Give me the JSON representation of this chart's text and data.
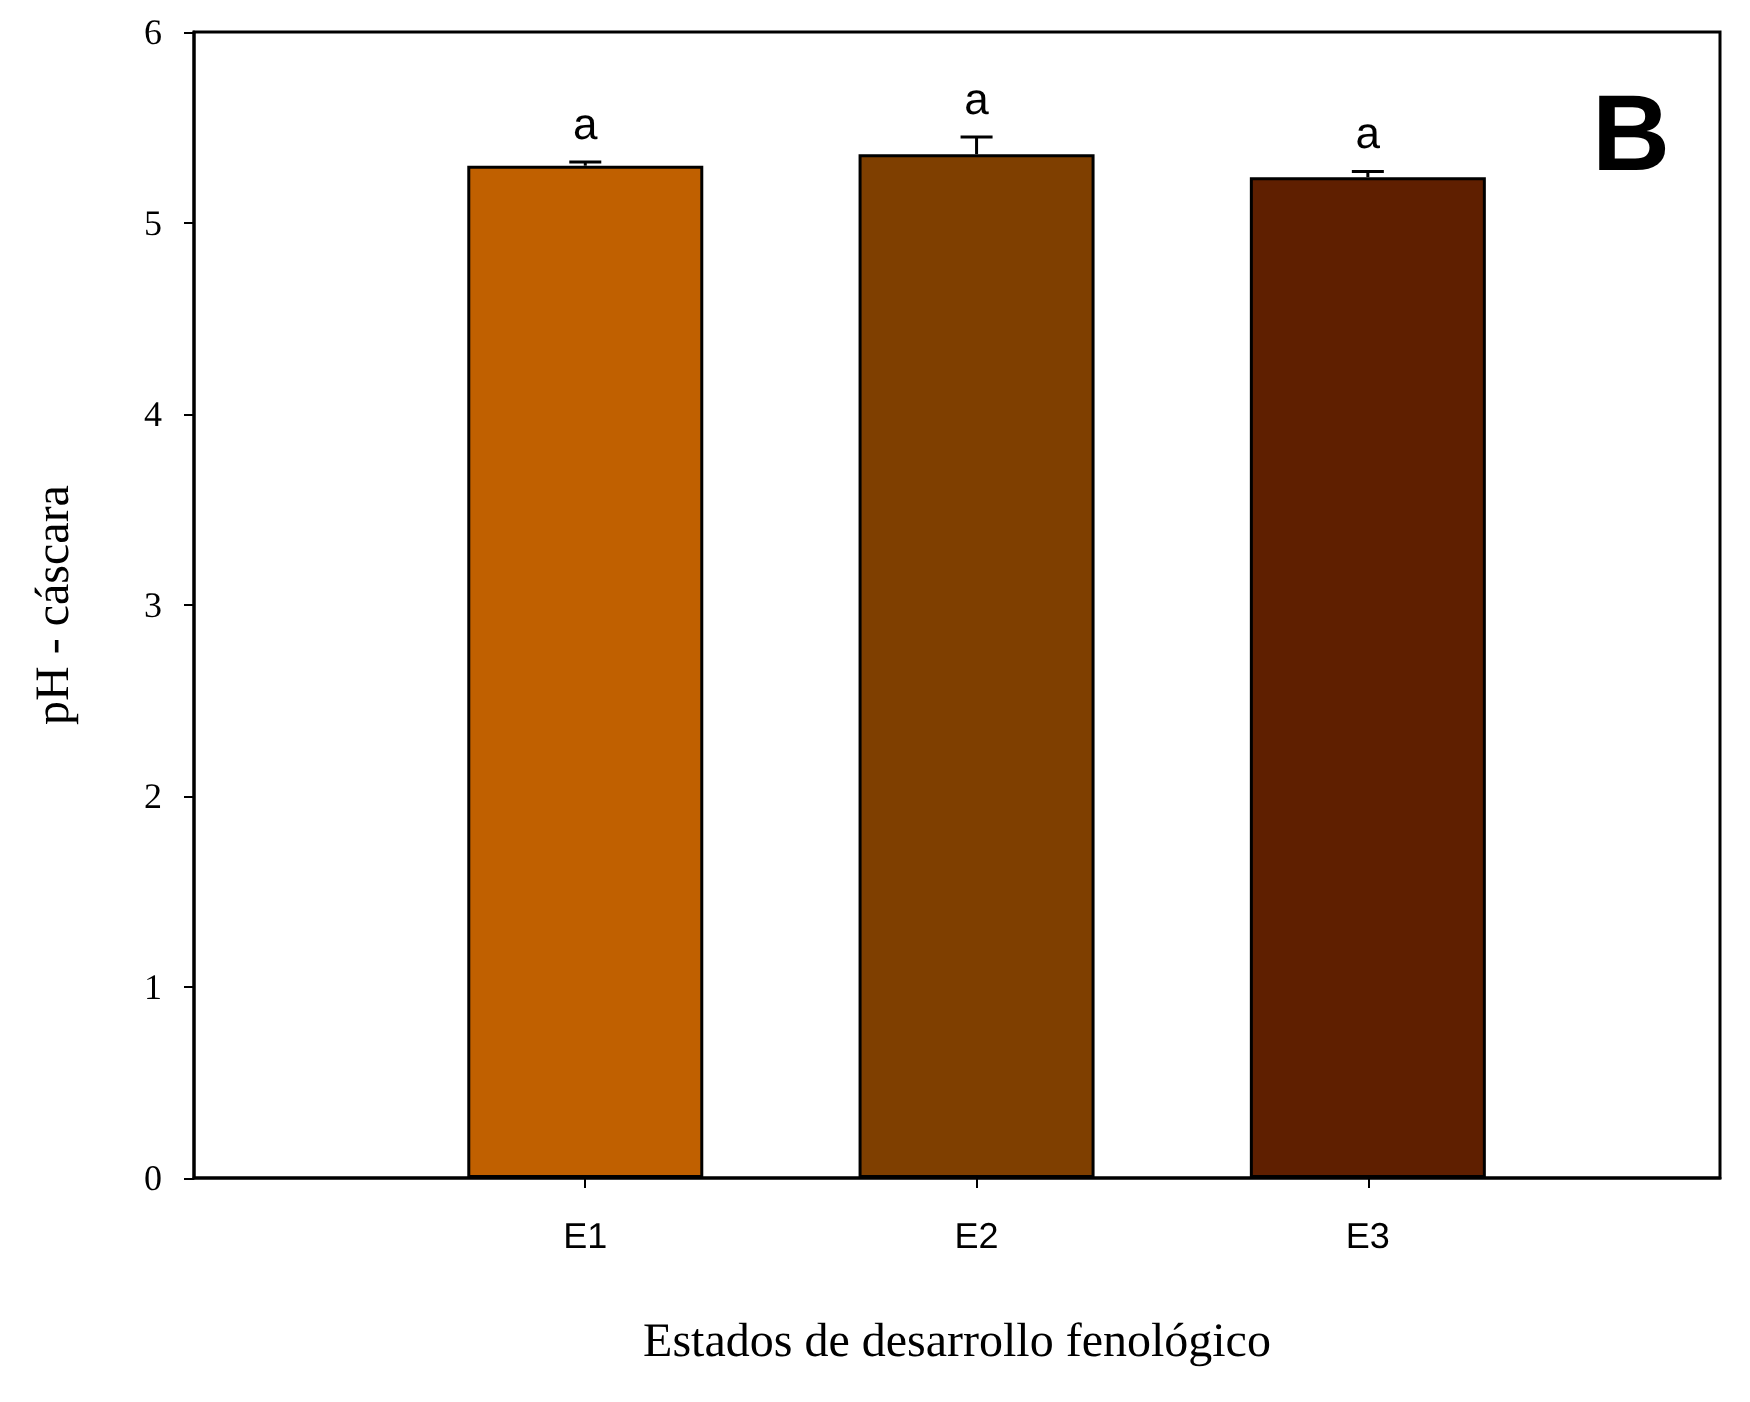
{
  "chart_data": {
    "type": "bar",
    "xlabel": "Estados de desarrollo fenológico",
    "ylabel": "pH - cáscara",
    "categories": [
      "E1",
      "E2",
      "E3"
    ],
    "values": [
      5.3,
      5.36,
      5.24
    ],
    "colors": [
      "#c06000",
      "#7f3f00",
      "#5f1f00"
    ],
    "errors": [
      0.02,
      0.09,
      0.03
    ],
    "ylim": [
      0,
      6
    ],
    "yticks": [
      0,
      1,
      2,
      3,
      4,
      5,
      6
    ],
    "grid": false,
    "annotations": [
      {
        "text": "a",
        "x": "E1",
        "y": 5.32
      },
      {
        "text": "a",
        "x": "E2",
        "y": 5.45
      },
      {
        "text": "a",
        "x": "E3",
        "y": 5.27
      },
      "B"
    ]
  }
}
